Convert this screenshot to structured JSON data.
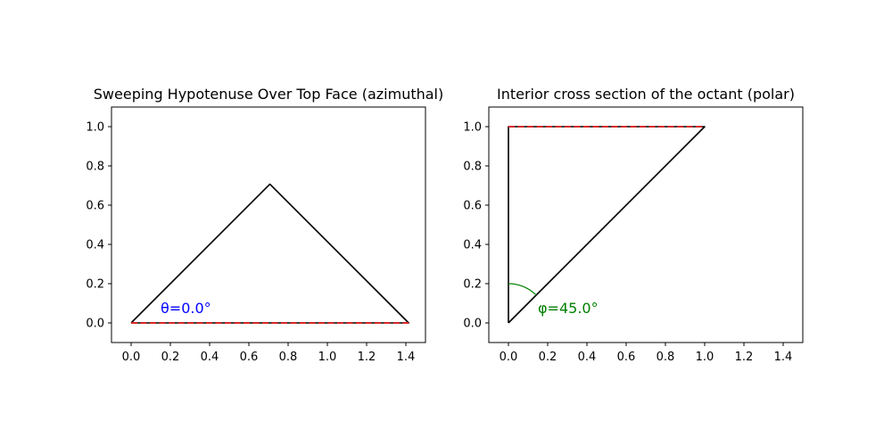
{
  "chart_data": [
    {
      "type": "line",
      "title": "Sweeping Hypotenuse Over Top Face (azimuthal)",
      "xlim": [
        -0.1,
        1.5
      ],
      "ylim": [
        -0.1,
        1.1
      ],
      "xticks": [
        "0.0",
        "0.2",
        "0.4",
        "0.6",
        "0.8",
        "1.0",
        "1.2",
        "1.4"
      ],
      "yticks": [
        "0.0",
        "0.2",
        "0.4",
        "0.6",
        "0.8",
        "1.0"
      ],
      "grid": false,
      "series": [
        {
          "style": "solid",
          "color": "#000000",
          "x": [
            0,
            0.7071,
            1.4142,
            0
          ],
          "y": [
            0,
            0.7071,
            0,
            0
          ]
        },
        {
          "style": "dashed",
          "color": "#d62728",
          "x": [
            0,
            1.4142
          ],
          "y": [
            0,
            0
          ]
        }
      ],
      "annotations": [
        {
          "text": "θ=0.0°",
          "x": 0.15,
          "y": 0.05,
          "color": "#0000ff"
        }
      ]
    },
    {
      "type": "line",
      "title": "Interior cross section of the octant (polar)",
      "xlim": [
        -0.1,
        1.5
      ],
      "ylim": [
        -0.1,
        1.1
      ],
      "xticks": [
        "0.0",
        "0.2",
        "0.4",
        "0.6",
        "0.8",
        "1.0",
        "1.2",
        "1.4"
      ],
      "yticks": [
        "0.0",
        "0.2",
        "0.4",
        "0.6",
        "0.8",
        "1.0"
      ],
      "grid": false,
      "series": [
        {
          "style": "solid",
          "color": "#000000",
          "x": [
            0,
            0,
            1,
            0
          ],
          "y": [
            0,
            1,
            1,
            0
          ]
        },
        {
          "style": "dashed",
          "color": "#d62728",
          "x": [
            0,
            1
          ],
          "y": [
            1,
            1
          ]
        }
      ],
      "arc": {
        "radius": 0.2,
        "from_deg": 45,
        "to_deg": 90,
        "color": "#008000"
      },
      "annotations": [
        {
          "text": "φ=45.0°",
          "x": 0.15,
          "y": 0.05,
          "color": "#008000"
        }
      ]
    }
  ]
}
